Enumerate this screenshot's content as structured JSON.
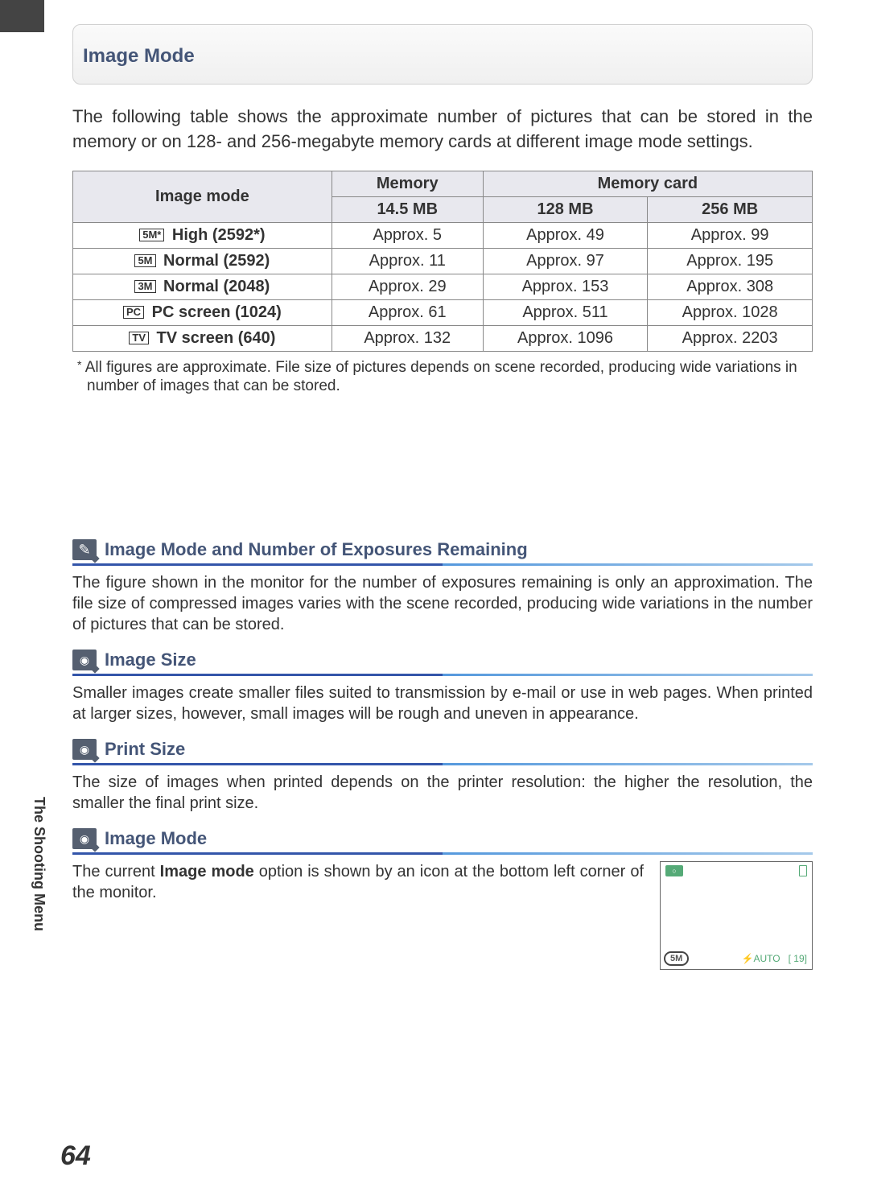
{
  "header": {
    "title": "Image Mode"
  },
  "intro": "The following table shows the approximate number of pictures that can be stored in the memory or on 128- and 256-megabyte memory cards at different image mode settings.",
  "table": {
    "col_mode": "Image mode",
    "col_memory": "Memory",
    "col_card": "Memory card",
    "sub_mem": "14.5 MB",
    "sub_128": "128 MB",
    "sub_256": "256 MB",
    "rows": [
      {
        "icon": "5M*",
        "label": "High (2592*)",
        "mem": "Approx. 5",
        "c128": "Approx. 49",
        "c256": "Approx. 99"
      },
      {
        "icon": "5M",
        "label": "Normal (2592)",
        "mem": "Approx. 11",
        "c128": "Approx. 97",
        "c256": "Approx. 195"
      },
      {
        "icon": "3M",
        "label": "Normal (2048)",
        "mem": "Approx. 29",
        "c128": "Approx. 153",
        "c256": "Approx. 308"
      },
      {
        "icon": "PC",
        "label": "PC screen (1024)",
        "mem": "Approx. 61",
        "c128": "Approx. 511",
        "c256": "Approx. 1028"
      },
      {
        "icon": "TV",
        "label": "TV screen (640)",
        "mem": "Approx. 132",
        "c128": "Approx. 1096",
        "c256": "Approx. 2203"
      }
    ]
  },
  "footnote": "All figures are approximate. File size of pictures depends on scene recorded, producing wide variations in number of images that can be stored.",
  "sections": {
    "s1": {
      "title": "Image Mode and Number of Exposures Remaining",
      "body": "The figure shown in the monitor for the number of exposures remaining is only an approximation. The file size of compressed images varies with the scene recorded, producing wide variations in the number of pictures that can be stored."
    },
    "s2": {
      "title": "Image Size",
      "body": "Smaller images create smaller files suited to transmission by e-mail or use in web pages. When printed at larger sizes, however, small images will be rough and uneven in appearance."
    },
    "s3": {
      "title": "Print Size",
      "body": "The size of images when printed depends on the printer resolution: the higher the resolution, the smaller the final print size."
    },
    "s4": {
      "title": "Image Mode",
      "body_prefix": "The current ",
      "body_bold": "Image mode",
      "body_suffix": " option is shown by an icon at the bottom left corner of the monitor."
    }
  },
  "monitor": {
    "mode_icon": "5M",
    "flash": "AUTO",
    "count": "[  19]"
  },
  "side_label": "The Shooting Menu",
  "page_number": "64",
  "colors": {
    "heading": "#445577",
    "underline_dark": "#3355aa",
    "underline_light": "#a5c9ea",
    "header_bg": "#e8e8ee",
    "icon_bg": "#555f70"
  }
}
